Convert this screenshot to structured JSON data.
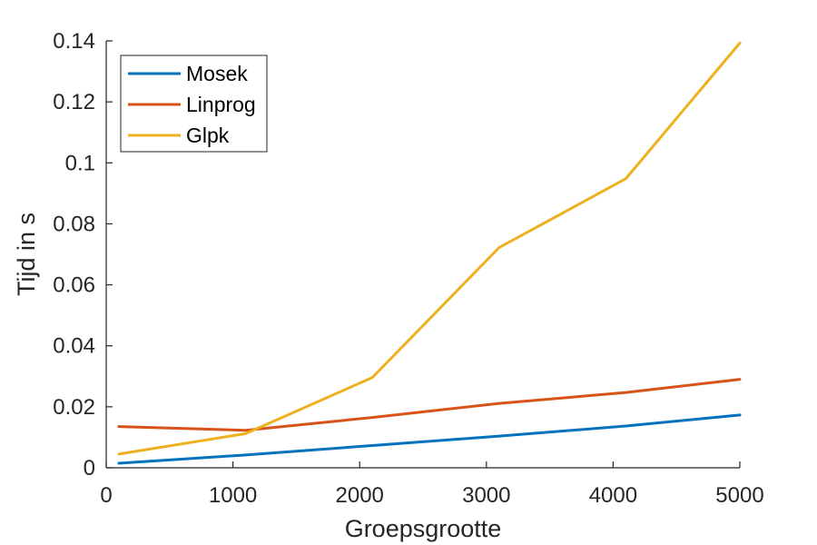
{
  "chart_data": {
    "type": "line",
    "xlabel": "Groepsgrootte",
    "ylabel": "Tijd in s",
    "xlim": [
      0,
      5000
    ],
    "ylim": [
      0,
      0.14
    ],
    "xticks": [
      0,
      1000,
      2000,
      3000,
      4000,
      5000
    ],
    "xtick_labels": [
      "0",
      "1000",
      "2000",
      "3000",
      "4000",
      "5000"
    ],
    "yticks": [
      0,
      0.02,
      0.04,
      0.06,
      0.08,
      0.1,
      0.12,
      0.14
    ],
    "ytick_labels": [
      "0",
      "0.02",
      "0.04",
      "0.06",
      "0.08",
      "0.1",
      "0.12",
      "0.14"
    ],
    "grid": false,
    "legend_position": "top-left",
    "x": [
      100,
      1100,
      2100,
      3100,
      4100,
      5000
    ],
    "series": [
      {
        "name": "Mosek",
        "color": "#0072BD",
        "values": [
          0.0015,
          0.0042,
          0.0073,
          0.0104,
          0.0137,
          0.0173
        ]
      },
      {
        "name": "Linprog",
        "color": "#D95319",
        "values": [
          0.0135,
          0.0123,
          0.0165,
          0.0211,
          0.0247,
          0.029
        ]
      },
      {
        "name": "Glpk",
        "color": "#EDB120",
        "values": [
          0.0045,
          0.0112,
          0.0296,
          0.0722,
          0.0948,
          0.1393
        ]
      }
    ]
  }
}
